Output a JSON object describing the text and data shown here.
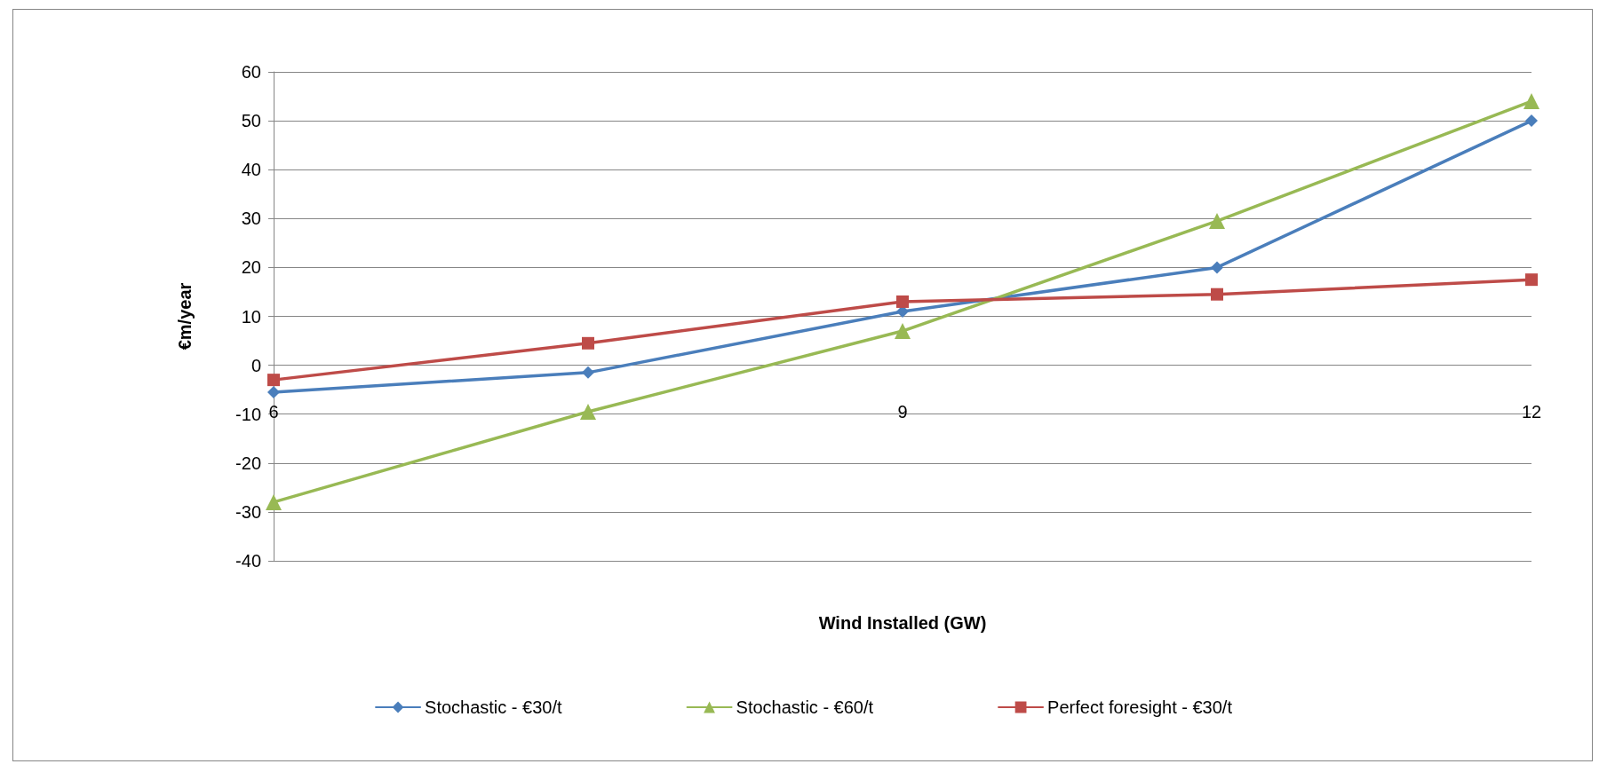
{
  "chart_data": {
    "type": "line",
    "xlabel": "Wind Installed (GW)",
    "ylabel": "€m/year",
    "x": [
      6,
      7.5,
      9,
      10.5,
      12
    ],
    "xlim": [
      6,
      12
    ],
    "xticks": [
      6,
      9,
      12
    ],
    "ylim": [
      -40,
      60
    ],
    "yticks": [
      -40,
      -30,
      -20,
      -10,
      0,
      10,
      20,
      30,
      40,
      50,
      60
    ],
    "grid": "y",
    "legend": "bottom",
    "line_style": "solid",
    "series": [
      {
        "name": "Stochastic - €30/t",
        "color": "#4a7ebb",
        "marker": "diamond",
        "values": [
          -5.5,
          -1.5,
          11,
          20,
          50
        ]
      },
      {
        "name": "Stochastic - €60/t",
        "color": "#98b954",
        "marker": "triangle",
        "values": [
          -28,
          -9.5,
          7,
          29.5,
          54
        ]
      },
      {
        "name": "Perfect foresight - €30/t",
        "color": "#be4b48",
        "marker": "square",
        "values": [
          -3,
          4.5,
          13,
          14.5,
          17.5
        ]
      }
    ]
  }
}
